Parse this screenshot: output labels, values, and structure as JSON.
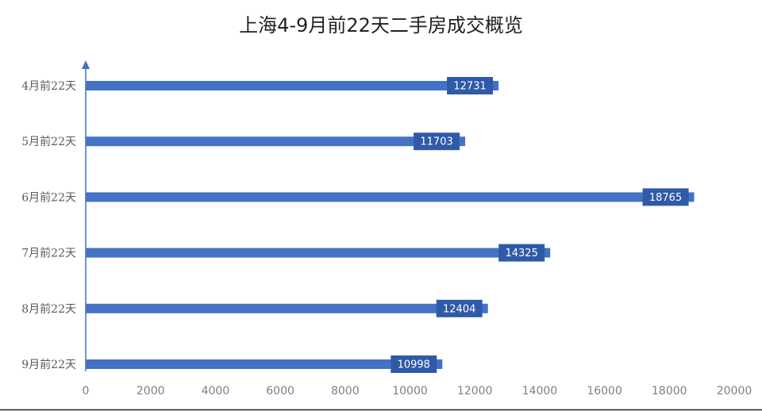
{
  "chart_data": {
    "type": "bar",
    "orientation": "horizontal",
    "title": "上海4-9月前22天二手房成交概览",
    "categories": [
      "4月前22天",
      "5月前22天",
      "6月前22天",
      "7月前22天",
      "8月前22天",
      "9月前22天"
    ],
    "values": [
      12731,
      11703,
      18765,
      14325,
      12404,
      10998
    ],
    "color": "#4472c4",
    "label_color": "#2f5aa8",
    "xlim": [
      0,
      20000
    ],
    "xticks": [
      0,
      2000,
      4000,
      6000,
      8000,
      10000,
      12000,
      14000,
      16000,
      18000,
      20000
    ],
    "grid": false
  }
}
